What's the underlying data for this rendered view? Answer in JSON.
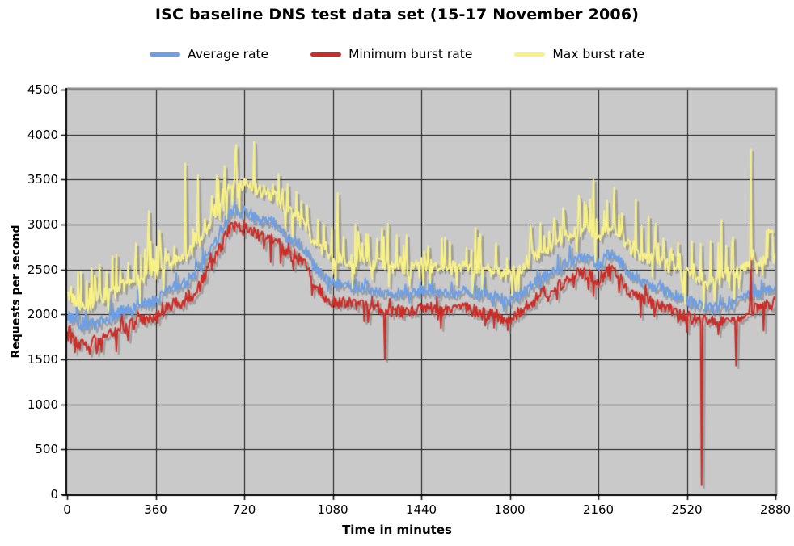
{
  "title": "ISC baseline DNS test data set (15-17 November 2006)",
  "legend": [
    {
      "label": "Average rate",
      "color": "#6B9FE8"
    },
    {
      "label": "Minimum burst rate",
      "color": "#CE2C26"
    },
    {
      "label": "Max burst rate",
      "color": "#F7F186"
    }
  ],
  "axes": {
    "y": {
      "title": "Requests per second",
      "min": 0,
      "max": 4500,
      "ticks": [
        0,
        500,
        1000,
        1500,
        2000,
        2500,
        3000,
        3500,
        4000,
        4500
      ]
    },
    "x": {
      "title": "Time in minutes",
      "min": 0,
      "max": 2880,
      "ticks": [
        0,
        360,
        720,
        1080,
        1440,
        1800,
        2160,
        2520,
        2880
      ]
    }
  },
  "colors": {
    "plot_bg": "#C9C9C9",
    "gridline": "#151515",
    "axis": "#000000",
    "wall_edge": "#8B8B8B",
    "shadow": "rgba(115,115,115,0.5)",
    "text": "#000000"
  },
  "chart_data": {
    "type": "line",
    "title": "ISC baseline DNS test data set (15-17 November 2006)",
    "xlabel": "Time in minutes",
    "ylabel": "Requests per second",
    "xlim": [
      0,
      2880
    ],
    "ylim": [
      0,
      4500
    ],
    "grid": true,
    "legend_position": "top",
    "x_step": 60,
    "x": [
      0,
      60,
      120,
      180,
      240,
      300,
      360,
      420,
      480,
      540,
      600,
      660,
      720,
      780,
      840,
      900,
      960,
      1020,
      1080,
      1140,
      1200,
      1260,
      1320,
      1380,
      1440,
      1500,
      1560,
      1620,
      1680,
      1740,
      1800,
      1860,
      1920,
      1980,
      2040,
      2100,
      2160,
      2220,
      2280,
      2340,
      2400,
      2460,
      2520,
      2580,
      2640,
      2700,
      2760,
      2820,
      2880
    ],
    "series": [
      {
        "name": "Average rate",
        "color": "#6B9FE8",
        "values": [
          2000,
          1870,
          1900,
          1980,
          2060,
          2100,
          2150,
          2280,
          2350,
          2520,
          2800,
          3120,
          3150,
          3050,
          3020,
          2850,
          2750,
          2480,
          2350,
          2320,
          2300,
          2280,
          2250,
          2230,
          2280,
          2250,
          2230,
          2260,
          2230,
          2200,
          2150,
          2250,
          2400,
          2470,
          2580,
          2650,
          2550,
          2700,
          2450,
          2350,
          2300,
          2220,
          2150,
          2100,
          2080,
          2100,
          2200,
          2250,
          2280
        ]
      },
      {
        "name": "Minimum burst rate",
        "color": "#CE2C26",
        "values": [
          1790,
          1650,
          1720,
          1800,
          1870,
          1920,
          1960,
          2090,
          2160,
          2330,
          2620,
          2950,
          2980,
          2870,
          2840,
          2670,
          2570,
          2290,
          2150,
          2120,
          2100,
          2080,
          2050,
          2030,
          2080,
          2050,
          2030,
          2060,
          2020,
          1990,
          1950,
          2060,
          2220,
          2290,
          2400,
          2470,
          2370,
          2530,
          2270,
          2170,
          2120,
          2040,
          1980,
          1930,
          1910,
          1930,
          2030,
          2090,
          2140
        ]
      },
      {
        "name": "Max burst rate",
        "color": "#F7F186",
        "values": [
          2230,
          2080,
          2140,
          2250,
          2330,
          2380,
          2430,
          2560,
          2650,
          2820,
          3100,
          3420,
          3450,
          3380,
          3330,
          3150,
          3050,
          2760,
          2620,
          2600,
          2580,
          2560,
          2530,
          2510,
          2560,
          2530,
          2510,
          2540,
          2510,
          2480,
          2430,
          2540,
          2700,
          2780,
          2890,
          2960,
          2860,
          3000,
          2760,
          2650,
          2600,
          2520,
          2450,
          2400,
          2380,
          2420,
          2550,
          2600,
          2620
        ]
      }
    ],
    "notable_points": [
      {
        "series": "Max burst rate",
        "t": 330,
        "value": 3150
      },
      {
        "series": "Max burst rate",
        "t": 480,
        "value": 3680
      },
      {
        "series": "Max burst rate",
        "t": 530,
        "value": 3550
      },
      {
        "series": "Max burst rate",
        "t": 760,
        "value": 3920
      },
      {
        "series": "Max burst rate",
        "t": 1100,
        "value": 3350
      },
      {
        "series": "Minimum burst rate",
        "t": 1290,
        "value": 1500
      },
      {
        "series": "Max burst rate",
        "t": 2080,
        "value": 3320
      },
      {
        "series": "Max burst rate",
        "t": 2140,
        "value": 3500
      },
      {
        "series": "Max burst rate",
        "t": 2310,
        "value": 3280
      },
      {
        "series": "Minimum burst rate",
        "t": 2580,
        "value": 100
      },
      {
        "series": "Max burst rate",
        "t": 2660,
        "value": 3050
      },
      {
        "series": "Minimum burst rate",
        "t": 2720,
        "value": 1430
      },
      {
        "series": "Max burst rate",
        "t": 2780,
        "value": 3840
      },
      {
        "series": "Minimum burst rate",
        "t": 2780,
        "value": 2630
      },
      {
        "series": "Minimum burst rate",
        "t": 2830,
        "value": 1820
      },
      {
        "series": "Max burst rate",
        "t": 2850,
        "value": 2950
      }
    ],
    "render": {
      "seed": 20061115,
      "step_minutes": 4,
      "noise": {
        "Average rate": {
          "band": 130,
          "spike_p": 0.07,
          "spike_up": 160,
          "down_p": 0.03,
          "spike_down": 120
        },
        "Minimum burst rate": {
          "band": 150,
          "spike_p": 0.05,
          "spike_up": 120,
          "down_p": 0.08,
          "spike_down": 220
        },
        "Max burst rate": {
          "band": 150,
          "spike_p": 0.3,
          "spike_up": 430,
          "down_p": 0.1,
          "spike_down": 300
        }
      }
    }
  }
}
